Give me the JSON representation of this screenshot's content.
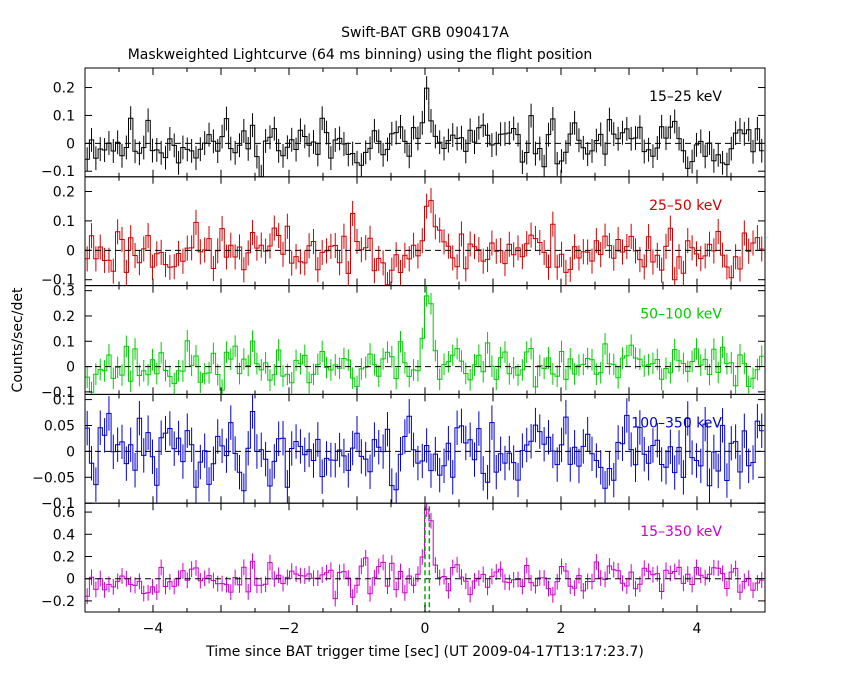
{
  "title": "Swift-BAT GRB 090417A",
  "subtitle": "Maskweighted Lightcurve (64 ms binning) using the flight position",
  "xlabel": "Time since BAT trigger time [sec] (UT 2009-04-17T13:17:23.7)",
  "ylabel": "Counts/sec/det",
  "chart_data": {
    "type": "line",
    "title": "Swift-BAT GRB 090417A",
    "subtitle": "Maskweighted Lightcurve (64 ms binning) using the flight position",
    "xlabel": "Time since BAT trigger time [sec] (UT 2009-04-17T13:17:23.7)",
    "ylabel": "Counts/sec/det",
    "xlim": [
      -5,
      5
    ],
    "x_ticks": [
      -4,
      -2,
      0,
      2,
      4
    ],
    "x_tick_labels": [
      "−4",
      "−2",
      "0",
      "2",
      "4"
    ],
    "bin_width_sec": 0.064,
    "grid": false,
    "zero_line": "dashed",
    "trigger_markers": [
      0,
      0.064
    ],
    "panels": [
      {
        "name": "15–25 keV",
        "color": "#000000",
        "ylim": [
          -0.12,
          0.27
        ],
        "yticks": [
          -0.1,
          0,
          0.1,
          0.2
        ],
        "ytick_labels": [
          "−0.1",
          "0",
          "0.1",
          "0.2"
        ],
        "noise_sigma": 0.045,
        "peak": [
          [
            0.0,
            0.21
          ],
          [
            0.064,
            0.08
          ]
        ],
        "seed": 11
      },
      {
        "name": "25–50 keV",
        "color": "#cc0000",
        "ylim": [
          -0.12,
          0.25
        ],
        "yticks": [
          -0.1,
          0,
          0.1,
          0.2
        ],
        "ytick_labels": [
          "−0.1",
          "0",
          "0.1",
          "0.2"
        ],
        "noise_sigma": 0.045,
        "peak": [
          [
            -0.064,
            0.06
          ],
          [
            0.0,
            0.15
          ],
          [
            0.064,
            0.18
          ],
          [
            0.128,
            0.06
          ]
        ],
        "seed": 23
      },
      {
        "name": "50–100 keV",
        "color": "#00cc00",
        "ylim": [
          -0.11,
          0.32
        ],
        "yticks": [
          -0.1,
          0,
          0.1,
          0.2,
          0.3
        ],
        "ytick_labels": [
          "−0.1",
          "0",
          "0.1",
          "0.2",
          "0.3"
        ],
        "noise_sigma": 0.045,
        "peak": [
          [
            -0.064,
            0.12
          ],
          [
            0.0,
            0.27
          ],
          [
            0.064,
            0.25
          ],
          [
            0.128,
            0.06
          ],
          [
            0.45,
            0.1
          ]
        ],
        "seed": 37
      },
      {
        "name": "100–350 keV",
        "color": "#0000cc",
        "ylim": [
          -0.1,
          0.11
        ],
        "yticks": [
          -0.1,
          -0.05,
          0,
          0.05,
          0.1
        ],
        "ytick_labels": [
          "−0.1",
          "−0.05",
          "0",
          "0.05",
          "0.1"
        ],
        "noise_sigma": 0.035,
        "peak": [],
        "seed": 41
      },
      {
        "name": "15–350 keV",
        "color": "#cc00cc",
        "ylim": [
          -0.3,
          0.68
        ],
        "yticks": [
          -0.2,
          0,
          0.2,
          0.4,
          0.6
        ],
        "ytick_labels": [
          "−0.2",
          "0",
          "0.2",
          "0.4",
          "0.6"
        ],
        "noise_sigma": 0.075,
        "peak": [
          [
            -0.064,
            0.2
          ],
          [
            0.0,
            0.6
          ],
          [
            0.064,
            0.52
          ],
          [
            0.128,
            0.15
          ]
        ],
        "seed": 53
      }
    ]
  }
}
